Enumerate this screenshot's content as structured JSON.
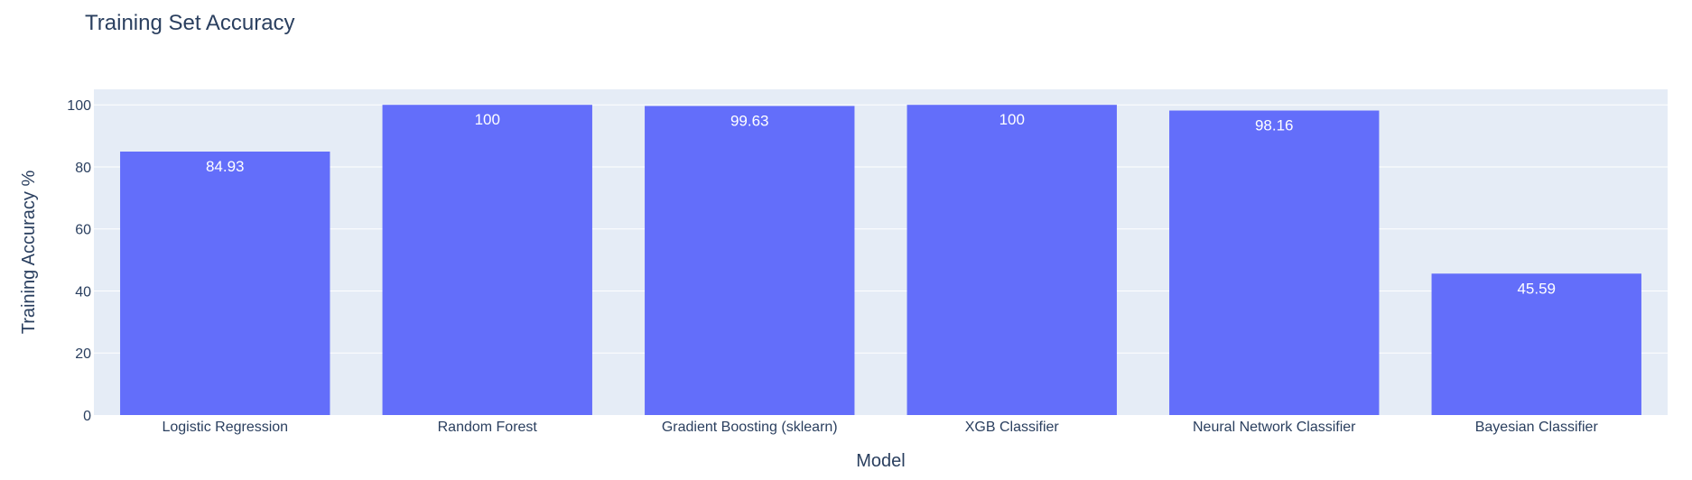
{
  "chart_data": {
    "type": "bar",
    "title": "Training Set Accuracy",
    "xlabel": "Model",
    "ylabel": "Training Accuracy %",
    "categories": [
      "Logistic Regression",
      "Random Forest",
      "Gradient Boosting (sklearn)",
      "XGB Classifier",
      "Neural Network Classifier",
      "Bayesian Classifier"
    ],
    "values": [
      84.93,
      100,
      99.63,
      100,
      98.16,
      45.59
    ],
    "value_labels": [
      "84.93",
      "100",
      "99.63",
      "100",
      "98.16",
      "45.59"
    ],
    "ylim": [
      0,
      105
    ],
    "yticks": [
      0,
      20,
      40,
      60,
      80,
      100
    ],
    "grid": true,
    "legend": "none",
    "colors": {
      "bar": "#636efa",
      "plot_bg": "#e5ecf6",
      "grid": "#ffffff",
      "text": "#2a3f5f",
      "bar_label": "#ffffff"
    }
  }
}
